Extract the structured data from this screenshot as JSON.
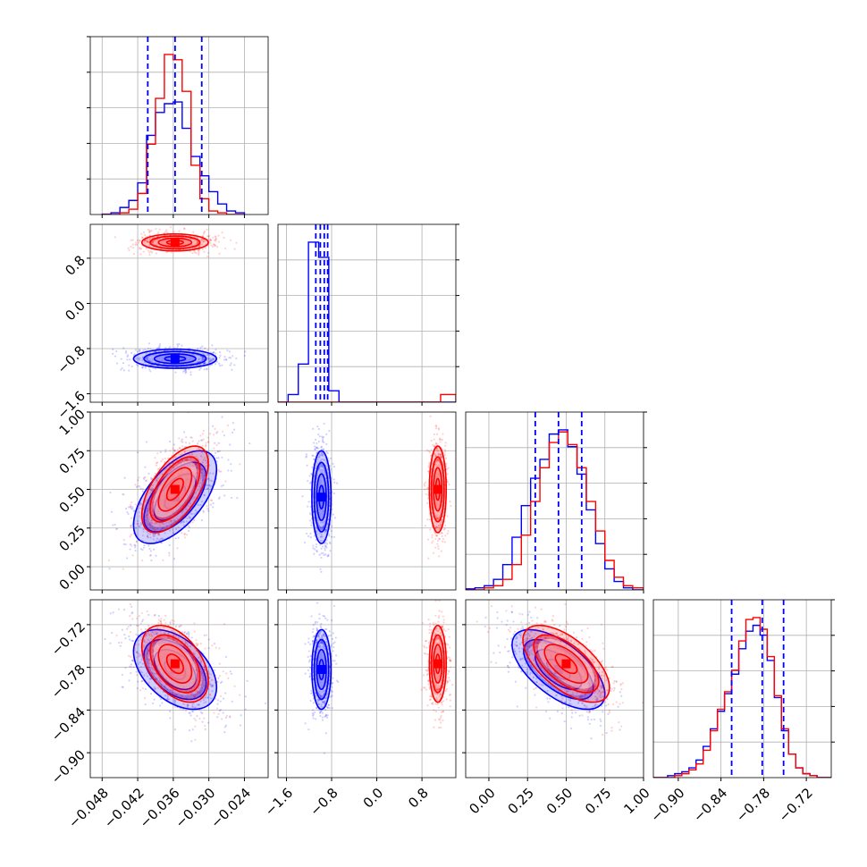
{
  "chart_data": {
    "type": "corner",
    "title": "",
    "colors": {
      "series_a": "#0000ff",
      "series_b": "#ff0000"
    },
    "n_params": 4,
    "axis_ranges": [
      [
        -0.05,
        -0.02
      ],
      [
        -1.75,
        1.4
      ],
      [
        -0.15,
        1.0
      ],
      [
        -0.935,
        -0.685
      ]
    ],
    "x_tick_labels": [
      [
        "−0.048",
        "−0.042",
        "−0.036",
        "−0.030",
        "−0.024"
      ],
      [
        "−1.6",
        "−0.8",
        "0.0",
        "0.8"
      ],
      [
        "0.00",
        "0.25",
        "0.50",
        "0.75",
        "1.00"
      ],
      [
        "−0.90",
        "−0.84",
        "−0.78",
        "−0.72"
      ]
    ],
    "x_tick_values": [
      [
        -0.048,
        -0.042,
        -0.036,
        -0.03,
        -0.024
      ],
      [
        -1.6,
        -0.8,
        0.0,
        0.8
      ],
      [
        0.0,
        0.25,
        0.5,
        0.75,
        1.0
      ],
      [
        -0.9,
        -0.84,
        -0.78,
        -0.72
      ]
    ],
    "y_tick_labels": [
      [],
      [
        "0.8",
        "0.0",
        "−0.8",
        "−1.6"
      ],
      [
        "1.00",
        "0.75",
        "0.50",
        "0.25",
        "0.00"
      ],
      [
        "−0.72",
        "−0.78",
        "−0.84",
        "−0.90"
      ]
    ],
    "y_tick_values": [
      [],
      [
        0.8,
        0.0,
        -0.8,
        -1.6
      ],
      [
        1.0,
        0.75,
        0.5,
        0.25,
        0.0
      ],
      [
        -0.72,
        -0.78,
        -0.84,
        -0.9
      ]
    ],
    "quantile_lines": [
      [
        -0.0403,
        -0.0357,
        -0.0312
      ],
      [
        -1.08,
        -1.0,
        -0.93,
        -0.87
      ],
      [
        0.3,
        0.45,
        0.6
      ],
      [
        -0.825,
        -0.782,
        -0.752
      ]
    ],
    "hist": [
      {
        "param": 0,
        "bin_edges": [
          -0.048,
          -0.0465,
          -0.045,
          -0.0435,
          -0.042,
          -0.0405,
          -0.039,
          -0.0375,
          -0.036,
          -0.0345,
          -0.033,
          -0.0315,
          -0.03,
          -0.0285,
          -0.027,
          -0.0255,
          -0.024
        ],
        "series": [
          {
            "color": "series_a",
            "values": [
              0.002,
              0.01,
              0.04,
              0.08,
              0.18,
              0.45,
              0.58,
              0.63,
              0.64,
              0.49,
              0.33,
              0.22,
              0.13,
              0.06,
              0.02,
              0.01
            ]
          },
          {
            "color": "series_b",
            "values": [
              0.0,
              0.0,
              0.01,
              0.03,
              0.12,
              0.4,
              0.66,
              0.91,
              0.88,
              0.7,
              0.28,
              0.09,
              0.02,
              0.01,
              0.0,
              0.0
            ]
          }
        ]
      },
      {
        "param": 1,
        "bin_edges": [
          -1.75,
          -1.57,
          -1.39,
          -1.21,
          -1.03,
          -0.85,
          -0.67,
          -0.49,
          -0.31,
          -0.13,
          0.05,
          0.23,
          0.41,
          0.59,
          0.77,
          0.95,
          1.13,
          1.31,
          1.4
        ],
        "series": [
          {
            "color": "series_a",
            "values": [
              0.0,
              0.02,
              0.1,
              0.42,
              0.38,
              0.03,
              0.0,
              0.0,
              0.0,
              0.0,
              0.0,
              0.0,
              0.0,
              0.0,
              0.0,
              0.0,
              0.0,
              0.0
            ]
          },
          {
            "color": "series_b",
            "values": [
              0.0,
              0.0,
              0.0,
              0.0,
              0.0,
              0.0,
              0.0,
              0.0,
              0.0,
              0.0,
              0.0,
              0.0,
              0.0,
              0.0,
              0.0,
              0.0,
              0.02,
              0.02
            ]
          }
        ]
      },
      {
        "param": 2,
        "bin_edges": [
          -0.15,
          -0.09,
          -0.03,
          0.03,
          0.09,
          0.15,
          0.21,
          0.27,
          0.33,
          0.39,
          0.45,
          0.51,
          0.57,
          0.63,
          0.69,
          0.75,
          0.81,
          0.87,
          0.93,
          1.0
        ],
        "series": [
          {
            "color": "series_a",
            "values": [
              0.005,
              0.01,
              0.02,
              0.05,
              0.12,
              0.25,
              0.4,
              0.53,
              0.62,
              0.74,
              0.76,
              0.68,
              0.55,
              0.38,
              0.22,
              0.1,
              0.04,
              0.01,
              0.0
            ]
          },
          {
            "color": "series_b",
            "values": [
              0.0,
              0.0,
              0.01,
              0.02,
              0.05,
              0.12,
              0.26,
              0.42,
              0.58,
              0.7,
              0.75,
              0.69,
              0.58,
              0.42,
              0.28,
              0.14,
              0.06,
              0.02,
              0.01
            ]
          }
        ]
      },
      {
        "param": 3,
        "bin_edges": [
          -0.935,
          -0.925,
          -0.915,
          -0.905,
          -0.895,
          -0.885,
          -0.875,
          -0.865,
          -0.855,
          -0.845,
          -0.835,
          -0.825,
          -0.815,
          -0.805,
          -0.795,
          -0.785,
          -0.775,
          -0.765,
          -0.755,
          -0.745,
          -0.735,
          -0.725,
          -0.715,
          -0.705,
          -0.695,
          -0.685
        ],
        "series": [
          {
            "color": "series_a",
            "values": [
              0.0,
              0.0,
              0.01,
              0.02,
              0.03,
              0.05,
              0.09,
              0.16,
              0.25,
              0.34,
              0.43,
              0.53,
              0.66,
              0.75,
              0.78,
              0.73,
              0.6,
              0.41,
              0.24,
              0.12,
              0.05,
              0.02,
              0.01,
              0.0,
              0.0
            ]
          },
          {
            "color": "series_b",
            "values": [
              0.0,
              0.0,
              0.0,
              0.01,
              0.02,
              0.04,
              0.07,
              0.14,
              0.24,
              0.35,
              0.44,
              0.55,
              0.7,
              0.81,
              0.82,
              0.76,
              0.62,
              0.42,
              0.25,
              0.12,
              0.05,
              0.02,
              0.01,
              0.0,
              0.0
            ]
          }
        ]
      }
    ],
    "pairs": [
      {
        "x": 0,
        "y": 1,
        "series": [
          {
            "color": "series_a",
            "center": [
              -0.0357,
              -0.98
            ],
            "sx": 0.0035,
            "sy": 0.085,
            "rho": 0.0
          },
          {
            "color": "series_b",
            "center": [
              -0.0357,
              1.08
            ],
            "sx": 0.0028,
            "sy": 0.075,
            "rho": 0.0
          }
        ]
      },
      {
        "x": 0,
        "y": 2,
        "series": [
          {
            "color": "series_a",
            "center": [
              -0.0357,
              0.45
            ],
            "sx": 0.0035,
            "sy": 0.15,
            "rho": 0.6
          },
          {
            "color": "series_b",
            "center": [
              -0.0357,
              0.5
            ],
            "sx": 0.0028,
            "sy": 0.14,
            "rho": 0.6
          }
        ]
      },
      {
        "x": 0,
        "y": 3,
        "series": [
          {
            "color": "series_a",
            "center": [
              -0.0357,
              -0.783
            ],
            "sx": 0.0035,
            "sy": 0.028,
            "rho": -0.45
          },
          {
            "color": "series_b",
            "center": [
              -0.0357,
              -0.775
            ],
            "sx": 0.0028,
            "sy": 0.027,
            "rho": -0.45
          }
        ]
      },
      {
        "x": 1,
        "y": 2,
        "series": [
          {
            "color": "series_a",
            "center": [
              -0.98,
              0.45
            ],
            "sx": 0.085,
            "sy": 0.15,
            "rho": 0.0
          },
          {
            "color": "series_b",
            "center": [
              1.08,
              0.5
            ],
            "sx": 0.075,
            "sy": 0.14,
            "rho": 0.0
          }
        ]
      },
      {
        "x": 1,
        "y": 3,
        "series": [
          {
            "color": "series_a",
            "center": [
              -0.98,
              -0.783
            ],
            "sx": 0.085,
            "sy": 0.028,
            "rho": 0.0
          },
          {
            "color": "series_b",
            "center": [
              1.08,
              -0.775
            ],
            "sx": 0.075,
            "sy": 0.027,
            "rho": 0.0
          }
        ]
      },
      {
        "x": 2,
        "y": 3,
        "series": [
          {
            "color": "series_a",
            "center": [
              0.45,
              -0.783
            ],
            "sx": 0.15,
            "sy": 0.028,
            "rho": -0.62
          },
          {
            "color": "series_b",
            "center": [
              0.5,
              -0.775
            ],
            "sx": 0.14,
            "sy": 0.027,
            "rho": -0.62
          }
        ]
      }
    ],
    "contour_levels_sigma": [
      0.5,
      1.0,
      1.5,
      2.0
    ],
    "grid": true,
    "legend": "none"
  }
}
